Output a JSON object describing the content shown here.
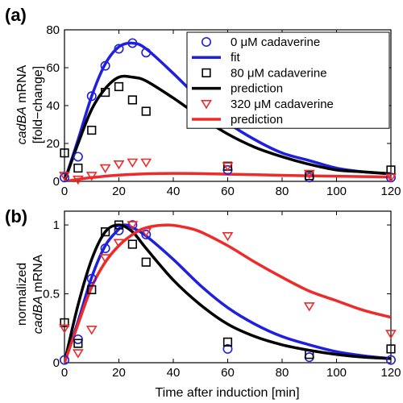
{
  "colors": {
    "blue": "#1f1fe0",
    "black": "#000000",
    "red": "#ee2a2a"
  },
  "chart_data": [
    {
      "type": "line",
      "panel_label": "(a)",
      "ylabel_italic": "cadBA",
      "ylabel_rest": " mRNA",
      "ylabel_line2": "[fold−change]",
      "xlabel": "",
      "xlim": [
        0,
        120
      ],
      "ylim": [
        0,
        80
      ],
      "xticks": [
        "0",
        "20",
        "40",
        "60",
        "80",
        "100",
        "120"
      ],
      "yticks": [
        "0",
        "20",
        "40",
        "60",
        "80"
      ],
      "legend_position": "top-right",
      "legend": [
        {
          "label": "0 μM cadaverine",
          "kind": "marker",
          "marker": "circle",
          "color": "blue"
        },
        {
          "label": "fit",
          "kind": "line",
          "color": "blue"
        },
        {
          "label": "80 μM cadaverine",
          "kind": "marker",
          "marker": "square",
          "color": "black"
        },
        {
          "label": "prediction",
          "kind": "line",
          "color": "black"
        },
        {
          "label": "320 μM cadaverine",
          "kind": "marker",
          "marker": "triangle",
          "color": "red"
        },
        {
          "label": "prediction",
          "kind": "line",
          "color": "red"
        }
      ],
      "series": [
        {
          "kind": "marker",
          "marker": "circle",
          "color": "blue",
          "x": [
            0,
            5,
            10,
            15,
            20,
            25,
            30,
            60,
            90,
            120
          ],
          "y": [
            2,
            13,
            45,
            61,
            70,
            73,
            68,
            6,
            2,
            2
          ]
        },
        {
          "kind": "marker",
          "marker": "square",
          "color": "black",
          "x": [
            0,
            5,
            10,
            15,
            20,
            25,
            30,
            60,
            90,
            120
          ],
          "y": [
            15,
            7,
            27,
            47,
            50,
            43,
            37,
            8,
            3,
            6
          ]
        },
        {
          "kind": "marker",
          "marker": "triangle",
          "color": "red",
          "x": [
            0,
            5,
            10,
            15,
            20,
            25,
            30,
            60,
            90,
            120
          ],
          "y": [
            3,
            1,
            3,
            7,
            9,
            10,
            10,
            8,
            4,
            2
          ]
        },
        {
          "kind": "line",
          "color": "blue",
          "x": [
            0,
            5,
            10,
            15,
            20,
            25,
            30,
            40,
            50,
            60,
            70,
            80,
            90,
            100,
            110,
            120
          ],
          "y": [
            0,
            22,
            45,
            62,
            71,
            73,
            70,
            57,
            43,
            31,
            22,
            15,
            11,
            7,
            5,
            4
          ]
        },
        {
          "kind": "line",
          "color": "black",
          "x": [
            0,
            5,
            10,
            15,
            20,
            25,
            30,
            40,
            50,
            60,
            70,
            80,
            90,
            100,
            110,
            120
          ],
          "y": [
            0,
            20,
            38,
            49,
            55,
            55,
            53,
            44,
            34,
            25,
            18,
            13,
            9,
            6,
            5,
            4
          ]
        },
        {
          "kind": "line",
          "color": "red",
          "x": [
            0,
            10,
            20,
            30,
            40,
            50,
            60,
            70,
            80,
            90,
            100,
            110,
            120
          ],
          "y": [
            0,
            2,
            3.3,
            4,
            4.2,
            4.1,
            3.8,
            3.5,
            3.2,
            2.9,
            2.7,
            2.5,
            2.3
          ]
        }
      ]
    },
    {
      "type": "line",
      "panel_label": "(b)",
      "ylabel_line1": "normalized",
      "ylabel_italic": "cadBA",
      "ylabel_rest": " mRNA",
      "xlabel": "Time after induction [min]",
      "xlim": [
        0,
        120
      ],
      "ylim": [
        0,
        1.1
      ],
      "xticks": [
        "0",
        "20",
        "40",
        "60",
        "80",
        "100",
        "120"
      ],
      "yticks": [
        "0",
        "0.5",
        "1"
      ],
      "series": [
        {
          "kind": "marker",
          "marker": "circle",
          "color": "blue",
          "x": [
            0,
            5,
            10,
            15,
            20,
            25,
            30,
            60,
            90,
            120
          ],
          "y": [
            0.02,
            0.17,
            0.61,
            0.83,
            0.96,
            1.0,
            0.93,
            0.1,
            0.04,
            0.02
          ]
        },
        {
          "kind": "marker",
          "marker": "square",
          "color": "black",
          "x": [
            0,
            5,
            10,
            15,
            20,
            25,
            30,
            60,
            90,
            120
          ],
          "y": [
            0.29,
            0.14,
            0.53,
            0.95,
            1.0,
            0.86,
            0.73,
            0.15,
            0.06,
            0.1
          ]
        },
        {
          "kind": "marker",
          "marker": "triangle",
          "color": "red",
          "x": [
            0,
            5,
            10,
            15,
            20,
            25,
            30,
            60,
            90,
            120
          ],
          "y": [
            0.25,
            0.07,
            0.24,
            0.76,
            0.87,
            1.0,
            0.95,
            0.92,
            0.41,
            0.21
          ]
        },
        {
          "kind": "line",
          "color": "blue",
          "x": [
            0,
            5,
            10,
            15,
            20,
            22,
            25,
            30,
            40,
            50,
            60,
            70,
            80,
            90,
            100,
            110,
            120
          ],
          "y": [
            0,
            0.3,
            0.62,
            0.85,
            0.97,
            1.0,
            0.98,
            0.92,
            0.75,
            0.56,
            0.4,
            0.28,
            0.19,
            0.13,
            0.08,
            0.05,
            0.03
          ]
        },
        {
          "kind": "line",
          "color": "black",
          "x": [
            0,
            5,
            10,
            15,
            20,
            25,
            30,
            40,
            50,
            60,
            70,
            80,
            90,
            100,
            110,
            120
          ],
          "y": [
            0,
            0.42,
            0.75,
            0.95,
            1.0,
            0.95,
            0.83,
            0.6,
            0.42,
            0.28,
            0.19,
            0.13,
            0.09,
            0.06,
            0.04,
            0.03
          ]
        },
        {
          "kind": "line",
          "color": "red",
          "x": [
            0,
            5,
            10,
            15,
            20,
            25,
            30,
            38,
            45,
            50,
            60,
            70,
            80,
            90,
            100,
            110,
            120
          ],
          "y": [
            0,
            0.28,
            0.55,
            0.73,
            0.85,
            0.93,
            0.98,
            1.0,
            0.98,
            0.95,
            0.85,
            0.73,
            0.62,
            0.52,
            0.45,
            0.38,
            0.33
          ]
        }
      ]
    }
  ]
}
